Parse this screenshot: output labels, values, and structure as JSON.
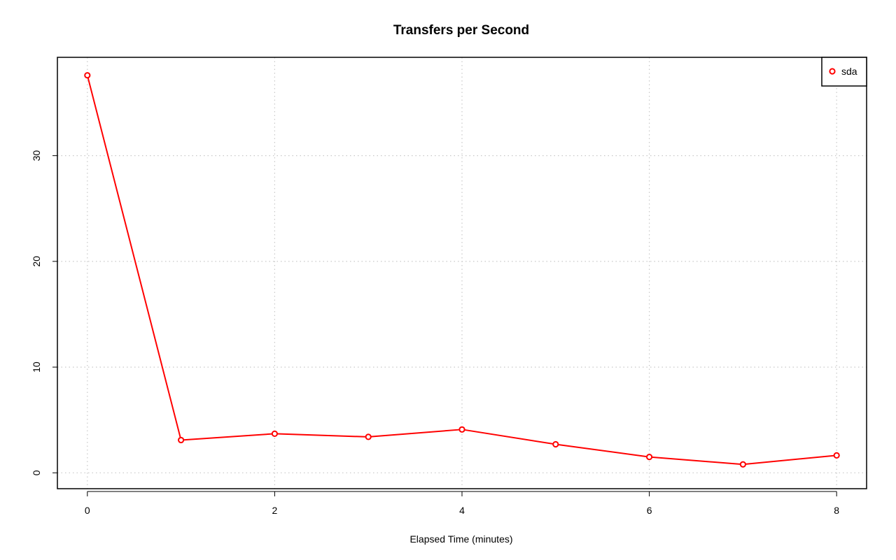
{
  "chart_data": {
    "type": "line",
    "title": "Transfers per Second",
    "xlabel": "Elapsed Time (minutes)",
    "ylabel": "",
    "xlim": [
      -0.32,
      8.32
    ],
    "ylim": [
      -1.5,
      39.3
    ],
    "xticks": [
      0,
      2,
      4,
      6,
      8
    ],
    "yticks": [
      0,
      10,
      20,
      30
    ],
    "grid": true,
    "legend_position": "top-right",
    "series": [
      {
        "name": "sda",
        "color": "#ff0000",
        "marker": "open-circle",
        "x": [
          0,
          1,
          2,
          3,
          4,
          5,
          6,
          7,
          8
        ],
        "y": [
          37.6,
          3.1,
          3.7,
          3.4,
          4.1,
          2.7,
          1.5,
          0.8,
          1.65
        ]
      }
    ]
  }
}
